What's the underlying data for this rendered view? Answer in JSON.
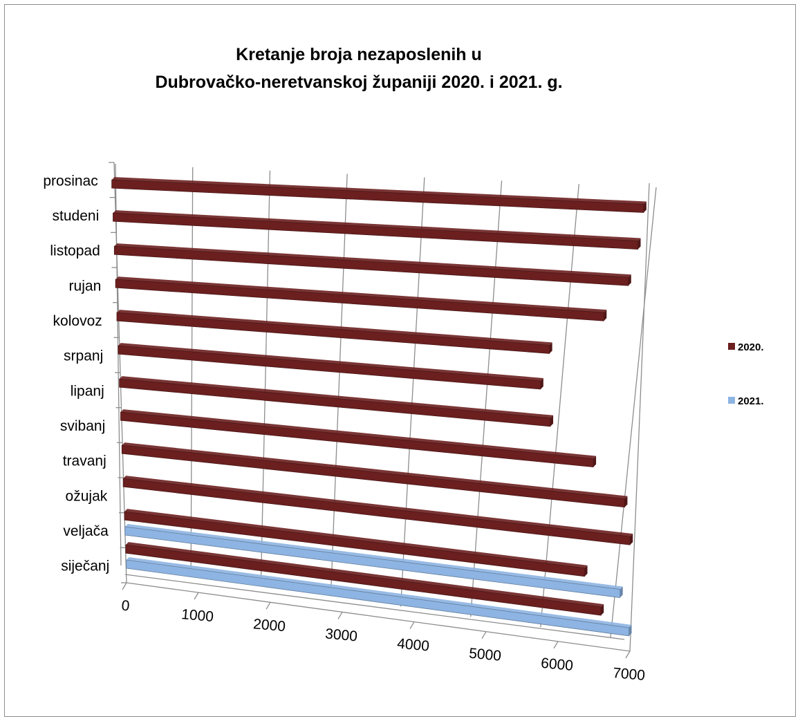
{
  "chart_data": {
    "type": "bar",
    "orientation": "horizontal",
    "style": "3d-perspective",
    "title": "Kretanje broja nezaposlenih u\nDubrovačko-neretvanskoj županiji  2020. i 2021. g.",
    "title_lines": [
      "Kretanje broja nezaposlenih u",
      "Dubrovačko-neretvanskoj županiji  2020. i 2021. g."
    ],
    "categories": [
      "siječanj",
      "veljača",
      "ožujak",
      "travanj",
      "svibanj",
      "lipanj",
      "srpanj",
      "kolovoz",
      "rujan",
      "listopad",
      "studeni",
      "prosinac"
    ],
    "series": [
      {
        "name": "2020.",
        "color": "#6b1f1f",
        "values": [
          6600,
          6350,
          6950,
          6850,
          6400,
          5800,
          5650,
          5750,
          6450,
          6750,
          6850,
          6900
        ]
      },
      {
        "name": "2021.",
        "color": "#8db4e2",
        "values": [
          7000,
          6850,
          null,
          null,
          null,
          null,
          null,
          null,
          null,
          null,
          null,
          null
        ]
      }
    ],
    "xlim": [
      0,
      7000
    ],
    "x_ticks": [
      "0",
      "1000",
      "2000",
      "3000",
      "4000",
      "5000",
      "6000",
      "7000"
    ],
    "grid": true,
    "legend_position": "right"
  }
}
